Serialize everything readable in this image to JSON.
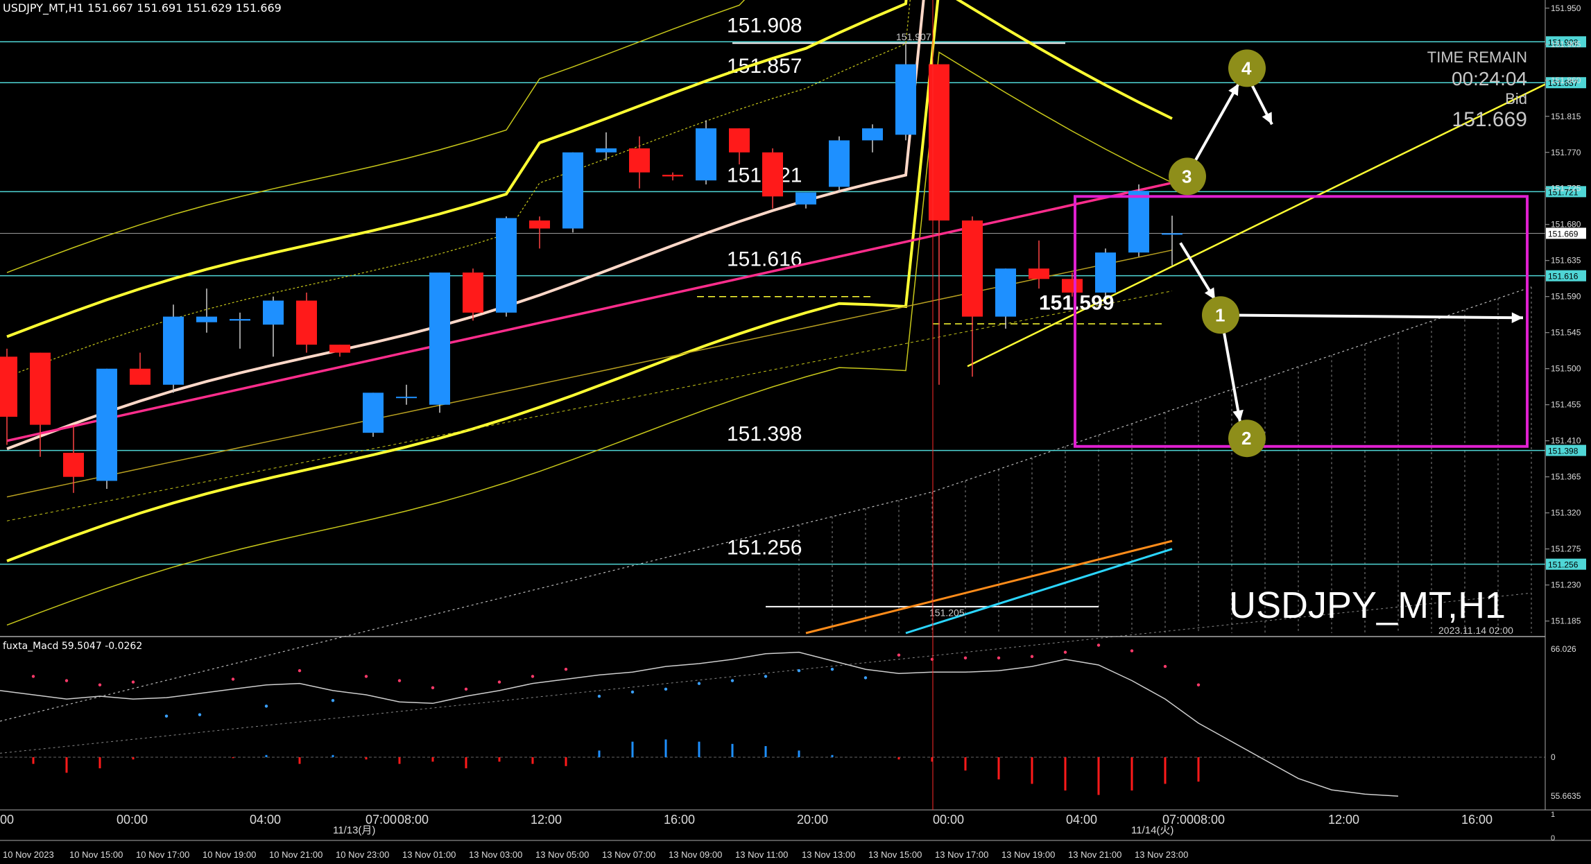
{
  "header": {
    "symbol_line": "USDJPY_MT,H1  151.667 151.691 151.629 151.669"
  },
  "macd_header": {
    "text": "fuxta_Macd 59.5047   -0.0262"
  },
  "info_panel": {
    "time_remain_label": "TIME REMAIN",
    "time_remain_value": "00:24:04",
    "bid_label": "Bid",
    "bid_value": "151.669"
  },
  "watermark": {
    "symbol": "USDJPY_MT,H1",
    "datetime": "2023.11.14 02:00"
  },
  "colors": {
    "background": "#000000",
    "bull_candle": "#1e90ff",
    "bear_candle": "#ff1a1a",
    "level_line": "#4fd6d6",
    "box": "#e020d0",
    "trendline": "#ffff33",
    "marker": "#8e8e1a"
  },
  "chart_data": {
    "type": "candlestick",
    "price_axis": {
      "range": [
        151.17,
        151.955
      ],
      "ticks": [
        "151.950",
        "151.905",
        "151.860",
        "151.815",
        "151.770",
        "151.725",
        "151.680",
        "151.635",
        "151.590",
        "151.545",
        "151.500",
        "151.455",
        "151.410",
        "151.365",
        "151.320",
        "151.275",
        "151.230",
        "151.185"
      ],
      "highlight_labels": [
        "151.908",
        "151.857",
        "151.721",
        "151.669",
        "151.616",
        "151.398",
        "151.256"
      ]
    },
    "time_axis": {
      "hour_labels": [
        "00:00",
        "04:00",
        "07:00",
        "08:00",
        "12:00",
        "16:00",
        "20:00",
        "00:00",
        "04:00",
        "07:00",
        "08:00",
        "12:00",
        "16:00"
      ],
      "date_labels": [
        "10 Nov 2023",
        "10 Nov 15:00",
        "10 Nov 17:00",
        "10 Nov 19:00",
        "10 Nov 21:00",
        "10 Nov 23:00",
        "13 Nov 01:00",
        "13 Nov 03:00",
        "13 Nov 05:00",
        "13 Nov 07:00",
        "13 Nov 09:00",
        "13 Nov 11:00",
        "13 Nov 13:00",
        "13 Nov 15:00",
        "13 Nov 17:00",
        "13 Nov 19:00",
        "13 Nov 21:00",
        "13 Nov 23:00"
      ],
      "day_markers": [
        "11/13(月)",
        "11/14(火)"
      ],
      "left_edge_label": "00"
    },
    "candles": [
      {
        "o": 151.515,
        "h": 151.525,
        "l": 151.405,
        "c": 151.44
      },
      {
        "o": 151.52,
        "h": 151.52,
        "l": 151.39,
        "c": 151.43
      },
      {
        "o": 151.395,
        "h": 151.43,
        "l": 151.345,
        "c": 151.365
      },
      {
        "o": 151.36,
        "h": 151.5,
        "l": 151.35,
        "c": 151.5
      },
      {
        "o": 151.5,
        "h": 151.52,
        "l": 151.48,
        "c": 151.48
      },
      {
        "o": 151.48,
        "h": 151.58,
        "l": 151.47,
        "c": 151.565
      },
      {
        "o": 151.558,
        "h": 151.6,
        "l": 151.545,
        "c": 151.565
      },
      {
        "o": 151.56,
        "h": 151.57,
        "l": 151.525,
        "c": 151.562
      },
      {
        "o": 151.555,
        "h": 151.59,
        "l": 151.515,
        "c": 151.585
      },
      {
        "o": 151.585,
        "h": 151.595,
        "l": 151.52,
        "c": 151.53
      },
      {
        "o": 151.53,
        "h": 151.53,
        "l": 151.515,
        "c": 151.52
      },
      {
        "o": 151.42,
        "h": 151.47,
        "l": 151.415,
        "c": 151.47
      },
      {
        "o": 151.465,
        "h": 151.48,
        "l": 151.455,
        "c": 151.465
      },
      {
        "o": 151.455,
        "h": 151.62,
        "l": 151.445,
        "c": 151.62
      },
      {
        "o": 151.62,
        "h": 151.625,
        "l": 151.56,
        "c": 151.57
      },
      {
        "o": 151.57,
        "h": 151.69,
        "l": 151.565,
        "c": 151.688
      },
      {
        "o": 151.685,
        "h": 151.69,
        "l": 151.65,
        "c": 151.675
      },
      {
        "o": 151.675,
        "h": 151.77,
        "l": 151.67,
        "c": 151.77
      },
      {
        "o": 151.77,
        "h": 151.795,
        "l": 151.76,
        "c": 151.775
      },
      {
        "o": 151.775,
        "h": 151.79,
        "l": 151.725,
        "c": 151.745
      },
      {
        "o": 151.742,
        "h": 151.745,
        "l": 151.735,
        "c": 151.74
      },
      {
        "o": 151.735,
        "h": 151.81,
        "l": 151.73,
        "c": 151.8
      },
      {
        "o": 151.8,
        "h": 151.8,
        "l": 151.755,
        "c": 151.77
      },
      {
        "o": 151.77,
        "h": 151.775,
        "l": 151.7,
        "c": 151.715
      },
      {
        "o": 151.705,
        "h": 151.72,
        "l": 151.7,
        "c": 151.72
      },
      {
        "o": 151.727,
        "h": 151.79,
        "l": 151.72,
        "c": 151.785
      },
      {
        "o": 151.785,
        "h": 151.805,
        "l": 151.77,
        "c": 151.8
      },
      {
        "o": 151.792,
        "h": 151.905,
        "l": 151.785,
        "c": 151.88
      },
      {
        "o": 151.88,
        "h": 151.88,
        "l": 151.48,
        "c": 151.685
      },
      {
        "o": 151.685,
        "h": 151.69,
        "l": 151.49,
        "c": 151.565
      },
      {
        "o": 151.565,
        "h": 151.625,
        "l": 151.55,
        "c": 151.625
      },
      {
        "o": 151.625,
        "h": 151.66,
        "l": 151.6,
        "c": 151.612
      },
      {
        "o": 151.612,
        "h": 151.62,
        "l": 151.59,
        "c": 151.595
      },
      {
        "o": 151.595,
        "h": 151.65,
        "l": 151.585,
        "c": 151.645
      },
      {
        "o": 151.645,
        "h": 151.73,
        "l": 151.64,
        "c": 151.722
      },
      {
        "o": 151.669,
        "h": 151.691,
        "l": 151.629,
        "c": 151.669
      }
    ],
    "levels": [
      {
        "price": 151.908,
        "label": "151.908"
      },
      {
        "price": 151.857,
        "label": "151.857"
      },
      {
        "price": 151.721,
        "label": "151.721"
      },
      {
        "price": 151.616,
        "label": "151.616"
      },
      {
        "price": 151.398,
        "label": "151.398"
      },
      {
        "price": 151.256,
        "label": "151.256"
      }
    ],
    "annotations": [
      {
        "text": "151.907",
        "price": 151.91,
        "bar": 27
      },
      {
        "text": "151.599",
        "price": 151.585,
        "bar": 31
      },
      {
        "text": "151.205",
        "price": 151.191,
        "bar": 28
      }
    ],
    "markers": [
      {
        "label": "1",
        "bar": 36,
        "price": 151.567
      },
      {
        "label": "2",
        "bar": 37,
        "price": 151.413
      },
      {
        "label": "3",
        "bar": 35,
        "price": 151.74
      },
      {
        "label": "4",
        "bar": 37,
        "price": 151.875
      }
    ],
    "macd": {
      "range": [
        55.6635,
        66.026
      ],
      "tick_labels": [
        "66.026",
        "0",
        "55.6635"
      ],
      "line": [
        63.1,
        62.8,
        62.5,
        62.7,
        62.5,
        62.6,
        62.9,
        63.2,
        63.5,
        63.6,
        63.1,
        62.8,
        62.3,
        62.2,
        62.7,
        63.1,
        63.6,
        63.9,
        64.2,
        64.4,
        64.8,
        65.0,
        65.3,
        65.7,
        65.8,
        65.2,
        64.6,
        64.3,
        64.4,
        64.4,
        64.5,
        64.8,
        65.3,
        64.9,
        63.8,
        62.5,
        60.8,
        59.5,
        58.2,
        56.9,
        56.1,
        55.8,
        55.66
      ],
      "bars": [
        -0.15,
        -0.35,
        -0.25,
        -0.05,
        0.0,
        0.0,
        -0.02,
        0.05,
        -0.15,
        0.05,
        -0.05,
        -0.15,
        -0.1,
        -0.25,
        -0.1,
        -0.15,
        -0.2,
        0.15,
        0.35,
        0.4,
        0.35,
        0.3,
        0.25,
        0.15,
        0.05,
        0.0,
        -0.05,
        -0.1,
        -0.3,
        -0.5,
        -0.6,
        -0.75,
        -0.85,
        -0.75,
        -0.6,
        -0.55
      ]
    }
  }
}
